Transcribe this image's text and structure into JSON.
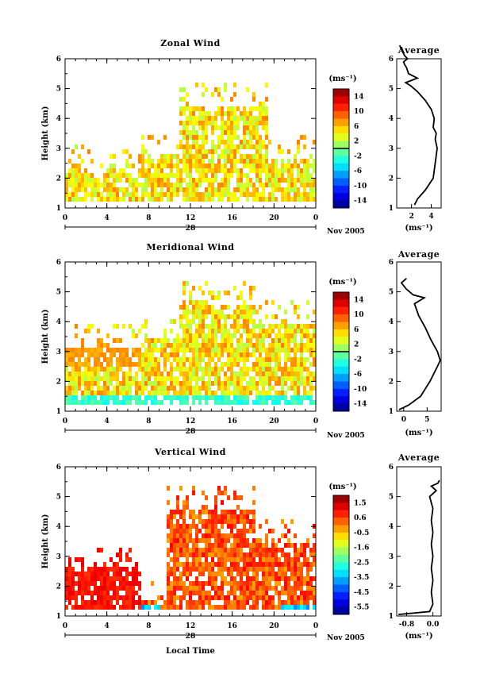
{
  "figure": {
    "date_label": "Nov 2005",
    "day_label": "28",
    "xlabel_bottom": "Local Time",
    "avg_title": "Average",
    "unit_label": "(ms⁻¹)",
    "ylabel": "Height (km)"
  },
  "chart_data": [
    {
      "type": "heatmap",
      "title": "Zonal Wind",
      "xlabel": "",
      "ylabel": "Height (km)",
      "xticks": [
        "0",
        "4",
        "8",
        "12",
        "16",
        "20",
        "0"
      ],
      "yticks": [
        "1",
        "2",
        "3",
        "4",
        "5",
        "6"
      ],
      "xlim": [
        0,
        24
      ],
      "ylim": [
        1,
        6
      ],
      "colorbar": {
        "unit": "(ms⁻¹)",
        "ticks": [
          "14",
          "10",
          "6",
          "2",
          "-2",
          "-6",
          "-10",
          "-14"
        ],
        "range": [
          -16,
          16
        ]
      },
      "dominant_range_ms": [
        -2,
        8
      ],
      "profile": {
        "title": "Average",
        "xlabel": "(ms⁻¹)",
        "xticks": [
          "2",
          "4"
        ],
        "xlim": [
          0.5,
          5
        ],
        "heights_km": [
          1.1,
          1.3,
          1.6,
          2.0,
          2.5,
          3.0,
          3.3,
          3.5,
          3.7,
          4.0,
          4.3,
          4.6,
          4.9,
          5.1,
          5.2,
          5.35,
          5.5,
          5.7,
          5.8,
          5.9,
          6.0,
          6.1,
          6.3,
          6.45
        ],
        "values_ms": [
          2.3,
          2.6,
          3.4,
          4.2,
          4.4,
          4.6,
          4.4,
          4.5,
          4.2,
          4.3,
          4.0,
          3.4,
          2.6,
          1.9,
          1.4,
          2.6,
          1.7,
          1.5,
          1.3,
          1.2,
          1.6,
          1.3,
          1.0,
          0.8
        ]
      }
    },
    {
      "type": "heatmap",
      "title": "Meridional Wind",
      "xlabel": "",
      "ylabel": "Height (km)",
      "xticks": [
        "0",
        "4",
        "8",
        "12",
        "16",
        "20",
        "0"
      ],
      "yticks": [
        "1",
        "2",
        "3",
        "4",
        "5",
        "6"
      ],
      "xlim": [
        0,
        24
      ],
      "ylim": [
        1,
        6
      ],
      "colorbar": {
        "unit": "(ms⁻¹)",
        "ticks": [
          "14",
          "10",
          "6",
          "2",
          "-2",
          "-6",
          "-10",
          "-14"
        ],
        "range": [
          -16,
          16
        ]
      },
      "dominant_range_ms": [
        -2,
        8
      ],
      "profile": {
        "title": "Average",
        "xlabel": "(ms⁻¹)",
        "xticks": [
          "0",
          "5"
        ],
        "xlim": [
          -1.5,
          8
        ],
        "heights_km": [
          1.05,
          1.2,
          1.5,
          2.0,
          2.5,
          2.7,
          3.0,
          3.4,
          3.8,
          4.2,
          4.6,
          4.8,
          4.9,
          5.1,
          5.3,
          5.45
        ],
        "values_ms": [
          -1.0,
          1.0,
          3.6,
          5.6,
          7.2,
          7.8,
          7.2,
          5.8,
          4.6,
          3.2,
          2.3,
          4.4,
          2.0,
          0.5,
          -0.5,
          0.6
        ]
      }
    },
    {
      "type": "heatmap",
      "title": "Vertical Wind",
      "xlabel": "Local Time",
      "ylabel": "Height (km)",
      "xticks": [
        "0",
        "4",
        "8",
        "12",
        "16",
        "20",
        "0"
      ],
      "yticks": [
        "1",
        "2",
        "3",
        "4",
        "5",
        "6"
      ],
      "xlim": [
        0,
        24
      ],
      "ylim": [
        1,
        6
      ],
      "colorbar": {
        "unit": "(ms⁻¹)",
        "ticks": [
          "1.5",
          "0.6",
          "-0.5",
          "-1.6",
          "-2.5",
          "-3.5",
          "-4.5",
          "-5.5"
        ],
        "range": [
          -6,
          2
        ]
      },
      "dominant_range_ms": [
        -1,
        1
      ],
      "profile": {
        "title": "Average",
        "xlabel": "(ms⁻¹)",
        "xticks": [
          "-0.8",
          "0.0"
        ],
        "xlim": [
          -1.1,
          0.25
        ],
        "heights_km": [
          1.05,
          1.15,
          1.4,
          1.8,
          2.2,
          2.6,
          3.0,
          3.4,
          3.8,
          4.2,
          4.6,
          5.0,
          5.2,
          5.35,
          5.45,
          5.55
        ],
        "values_ms": [
          -1.05,
          -0.1,
          0.0,
          -0.05,
          0.0,
          -0.05,
          0.0,
          -0.05,
          0.0,
          -0.05,
          0.0,
          -0.1,
          0.1,
          -0.05,
          0.15,
          0.2
        ]
      }
    }
  ]
}
